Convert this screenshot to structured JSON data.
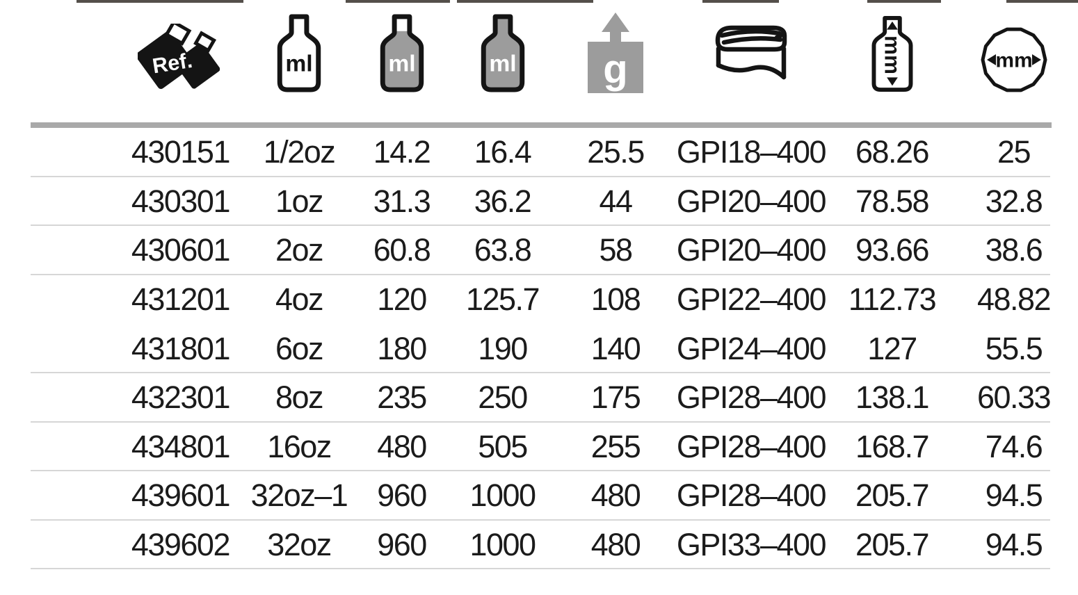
{
  "icons": {
    "ref_label": "Ref.",
    "ml_label": "ml",
    "g_label": "g",
    "mm_vertical_label": "mm",
    "mm_diameter_label": "mm"
  },
  "header": {
    "columns": [
      {
        "name": "ref",
        "icon": "ref-icon"
      },
      {
        "name": "size-oz",
        "icon": "bottle-empty-ml-icon"
      },
      {
        "name": "nominal-capacity-ml",
        "icon": "bottle-filled-ml-icon"
      },
      {
        "name": "brimful-capacity-ml",
        "icon": "bottle-brimful-ml-icon"
      },
      {
        "name": "weight-g",
        "icon": "weight-g-icon"
      },
      {
        "name": "neck-finish",
        "icon": "neck-finish-icon"
      },
      {
        "name": "height-mm",
        "icon": "height-mm-icon"
      },
      {
        "name": "diameter-mm",
        "icon": "diameter-mm-icon"
      }
    ]
  },
  "table": {
    "column_keys": [
      "ref",
      "size",
      "nominal_ml",
      "brimful_ml",
      "weight_g",
      "neck_finish",
      "height_mm",
      "diameter_mm"
    ],
    "separator_after": [
      true,
      true,
      true,
      false,
      true,
      true,
      true,
      true,
      true
    ],
    "rows": [
      {
        "ref": "430151",
        "size": "1/2oz",
        "nominal_ml": "14.2",
        "brimful_ml": "16.4",
        "weight_g": "25.5",
        "neck_finish": "GPI18–400",
        "height_mm": "68.26",
        "diameter_mm": "25"
      },
      {
        "ref": "430301",
        "size": "1oz",
        "nominal_ml": "31.3",
        "brimful_ml": "36.2",
        "weight_g": "44",
        "neck_finish": "GPI20–400",
        "height_mm": "78.58",
        "diameter_mm": "32.8"
      },
      {
        "ref": "430601",
        "size": "2oz",
        "nominal_ml": "60.8",
        "brimful_ml": "63.8",
        "weight_g": "58",
        "neck_finish": "GPI20–400",
        "height_mm": "93.66",
        "diameter_mm": "38.6"
      },
      {
        "ref": "431201",
        "size": "4oz",
        "nominal_ml": "120",
        "brimful_ml": "125.7",
        "weight_g": "108",
        "neck_finish": "GPI22–400",
        "height_mm": "112.73",
        "diameter_mm": "48.82"
      },
      {
        "ref": "431801",
        "size": "6oz",
        "nominal_ml": "180",
        "brimful_ml": "190",
        "weight_g": "140",
        "neck_finish": "GPI24–400",
        "height_mm": "127",
        "diameter_mm": "55.5"
      },
      {
        "ref": "432301",
        "size": "8oz",
        "nominal_ml": "235",
        "brimful_ml": "250",
        "weight_g": "175",
        "neck_finish": "GPI28–400",
        "height_mm": "138.1",
        "diameter_mm": "60.33"
      },
      {
        "ref": "434801",
        "size": "16oz",
        "nominal_ml": "480",
        "brimful_ml": "505",
        "weight_g": "255",
        "neck_finish": "GPI28–400",
        "height_mm": "168.7",
        "diameter_mm": "74.6"
      },
      {
        "ref": "439601",
        "size": "32oz–1",
        "nominal_ml": "960",
        "brimful_ml": "1000",
        "weight_g": "480",
        "neck_finish": "GPI28–400",
        "height_mm": "205.7",
        "diameter_mm": "94.5"
      },
      {
        "ref": "439602",
        "size": "32oz",
        "nominal_ml": "960",
        "brimful_ml": "1000",
        "weight_g": "480",
        "neck_finish": "GPI33–400",
        "height_mm": "205.7",
        "diameter_mm": "94.5"
      }
    ]
  },
  "colors": {
    "icon_gray": "#9c9c9c",
    "ink": "#141414",
    "divider_bar": "#a9a9a9",
    "row_separator": "#d6d6d6"
  }
}
